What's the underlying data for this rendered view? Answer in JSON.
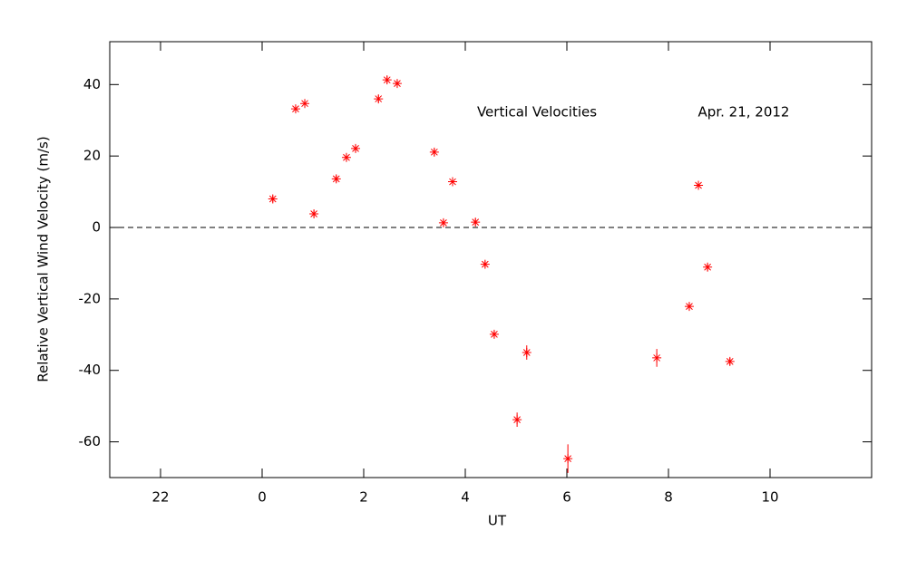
{
  "chart_data": {
    "type": "scatter",
    "xlabel": "UT",
    "ylabel": "Relative Vertical Wind Velocity (m/s)",
    "annotations": [
      "Vertical Velocities",
      "Apr. 21, 2012"
    ],
    "xlim": [
      -3,
      12
    ],
    "ylim": [
      -70,
      52
    ],
    "xticks": [
      {
        "value": -2,
        "label": "22"
      },
      0,
      2,
      4,
      6,
      8,
      10
    ],
    "yticks": [
      -60,
      -40,
      -20,
      0,
      20,
      40
    ],
    "reference_line": 0,
    "color": "#ff0000",
    "x": [
      0.21,
      0.66,
      0.84,
      1.02,
      1.46,
      1.66,
      1.84,
      2.29,
      2.46,
      2.66,
      3.39,
      3.57,
      3.75,
      4.2,
      4.39,
      4.57,
      5.21,
      5.02,
      6.02,
      7.77,
      8.41,
      8.59,
      8.77,
      9.21
    ],
    "values": [
      8.0,
      33.2,
      34.7,
      3.8,
      13.6,
      19.6,
      22.1,
      36.0,
      41.3,
      40.3,
      21.1,
      1.3,
      12.8,
      1.5,
      -10.3,
      -29.9,
      -35.0,
      -53.8,
      -64.7,
      -36.5,
      -22.1,
      11.8,
      -11.1,
      -37.5
    ],
    "errors": [
      1,
      1,
      1,
      1,
      1,
      1,
      1,
      1,
      1,
      1,
      1,
      1,
      1,
      1,
      1,
      1,
      2,
      2,
      4,
      2.5,
      1,
      1,
      1,
      1
    ]
  }
}
